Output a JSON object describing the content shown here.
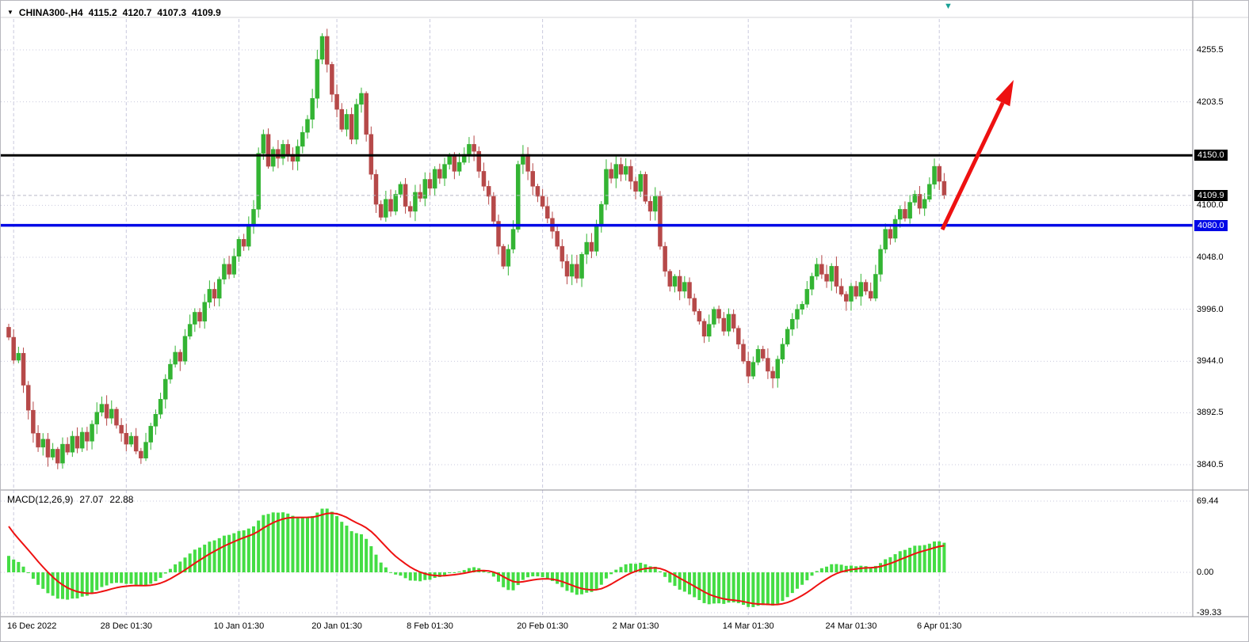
{
  "header": {
    "dropdown_icon": "▼",
    "symbol": "CHINA300-,H4",
    "open": "4115.2",
    "high": "4120.7",
    "low": "4107.3",
    "close": "4109.9"
  },
  "markers": {
    "top_right": "▼"
  },
  "macd_panel": {
    "title": "MACD(12,26,9)",
    "value_main": "27.07",
    "value_signal": "22.88"
  },
  "price_axis": [
    {
      "text": "4255.5",
      "price": 4255.5,
      "style": "plain"
    },
    {
      "text": "4203.5",
      "price": 4203.5,
      "style": "plain"
    },
    {
      "text": "4150.0",
      "price": 4150.0,
      "style": "black"
    },
    {
      "text": "4109.9",
      "price": 4109.9,
      "style": "black"
    },
    {
      "text": "4100.0",
      "price": 4100.0,
      "style": "plain"
    },
    {
      "text": "4080.0",
      "price": 4080.0,
      "style": "blue"
    },
    {
      "text": "4048.0",
      "price": 4048.0,
      "style": "plain"
    },
    {
      "text": "3996.0",
      "price": 3996.0,
      "style": "plain"
    },
    {
      "text": "3944.0",
      "price": 3944.0,
      "style": "plain"
    },
    {
      "text": "3892.5",
      "price": 3892.5,
      "style": "plain"
    },
    {
      "text": "3840.5",
      "price": 3840.5,
      "style": "plain"
    }
  ],
  "macd_axis": [
    {
      "text": "69.44",
      "value": 69.44
    },
    {
      "text": "0.00",
      "value": 0
    },
    {
      "text": "-39.33",
      "value": -39.33
    }
  ],
  "chart_data": {
    "type": "candlestick",
    "symbol": "CHINA300-",
    "timeframe": "H4",
    "title": "CHINA300-,H4",
    "current_ohlc": {
      "open": 4115.2,
      "high": 4120.7,
      "low": 4107.3,
      "close": 4109.9
    },
    "ylim": [
      3820,
      4290
    ],
    "grid": true,
    "grid_prices": [
      4255.5,
      4203.5,
      4100.0,
      4048.0,
      3996.0,
      3944.0,
      3892.5,
      3840.5
    ],
    "closes": [
      3968,
      3945,
      3952,
      3920,
      3895,
      3872,
      3858,
      3866,
      3848,
      3856,
      3842,
      3861,
      3853,
      3869,
      3857,
      3873,
      3864,
      3881,
      3893,
      3901,
      3887,
      3896,
      3880,
      3872,
      3861,
      3869,
      3854,
      3847,
      3863,
      3879,
      3891,
      3906,
      3926,
      3941,
      3953,
      3944,
      3969,
      3981,
      3993,
      3984,
      4003,
      4016,
      4007,
      4026,
      4041,
      4031,
      4049,
      4066,
      4059,
      4079,
      4096,
      4152,
      4171,
      4139,
      4156,
      4147,
      4161,
      4151,
      4144,
      4159,
      4173,
      4186,
      4207,
      4246,
      4269,
      4241,
      4211,
      4196,
      4176,
      4191,
      4166,
      4201,
      4212,
      4171,
      4131,
      4101,
      4088,
      4106,
      4094,
      4111,
      4121,
      4099,
      4094,
      4113,
      4107,
      4126,
      4117,
      4136,
      4127,
      4141,
      4149,
      4134,
      4143,
      4151,
      4161,
      4154,
      4134,
      4119,
      4109,
      4084,
      4059,
      4039,
      4056,
      4076,
      4141,
      4151,
      4134,
      4119,
      4109,
      4099,
      4087,
      4074,
      4059,
      4044,
      4029,
      4041,
      4027,
      4051,
      4063,
      4054,
      4081,
      4101,
      4136,
      4127,
      4141,
      4131,
      4139,
      4124,
      4114,
      4131,
      4104,
      4094,
      4109,
      4059,
      4034,
      4019,
      4029,
      4014,
      4023,
      4007,
      3994,
      3984,
      3969,
      3981,
      3996,
      3987,
      3974,
      3991,
      3977,
      3961,
      3944,
      3929,
      3943,
      3956,
      3947,
      3934,
      3927,
      3946,
      3961,
      3976,
      3986,
      3996,
      4001,
      4016,
      4029,
      4041,
      4031,
      4024,
      4039,
      4019,
      4011,
      4004,
      4019,
      4009,
      4023,
      4014,
      4007,
      4031,
      4056,
      4076,
      4067,
      4086,
      4096,
      4087,
      4103,
      4111,
      4097,
      4106,
      4121,
      4139,
      4124,
      4109.9
    ],
    "x_labels": [
      {
        "label": "16 Dec 2022",
        "index": 1
      },
      {
        "label": "28 Dec 01:30",
        "index": 24
      },
      {
        "label": "10 Jan 01:30",
        "index": 47
      },
      {
        "label": "20 Jan 01:30",
        "index": 67
      },
      {
        "label": "8 Feb 01:30",
        "index": 86
      },
      {
        "label": "20 Feb 01:30",
        "index": 109
      },
      {
        "label": "2 Mar 01:30",
        "index": 128
      },
      {
        "label": "14 Mar 01:30",
        "index": 151
      },
      {
        "label": "24 Mar 01:30",
        "index": 172
      },
      {
        "label": "6 Apr 01:30",
        "index": 190
      }
    ],
    "hlines": [
      {
        "name": "bid-price-line",
        "price": 4109.9,
        "color": "#b9b9c6",
        "width": 1,
        "dash": "4 3",
        "interactable": "false"
      },
      {
        "name": "resistance-line",
        "price": 4150.0,
        "color": "#000000",
        "width": 3,
        "dash": "",
        "interactable": "true"
      },
      {
        "name": "support-line",
        "price": 4080.0,
        "color": "#0008e6",
        "width": 3.5,
        "dash": "",
        "interactable": "true"
      }
    ],
    "macd": {
      "label": "MACD(12,26,9)",
      "main_value": 27.07,
      "signal_value": 22.88,
      "axis_values": [
        69.44,
        0,
        -39.33
      ],
      "axis_range": [
        -39.33,
        69.44
      ]
    },
    "arrow": {
      "from": [
        1188,
        289
      ],
      "to": [
        1278,
        100
      ],
      "color": "#ee1111"
    },
    "colors": {
      "bull": "#33b433",
      "bear": "#b64949",
      "hist": "#44dd44",
      "signal": "#ee1111",
      "grid": "#c9c9dd",
      "separator": "#8e8e96",
      "support": "#0008e6",
      "resistance": "#000000"
    }
  }
}
